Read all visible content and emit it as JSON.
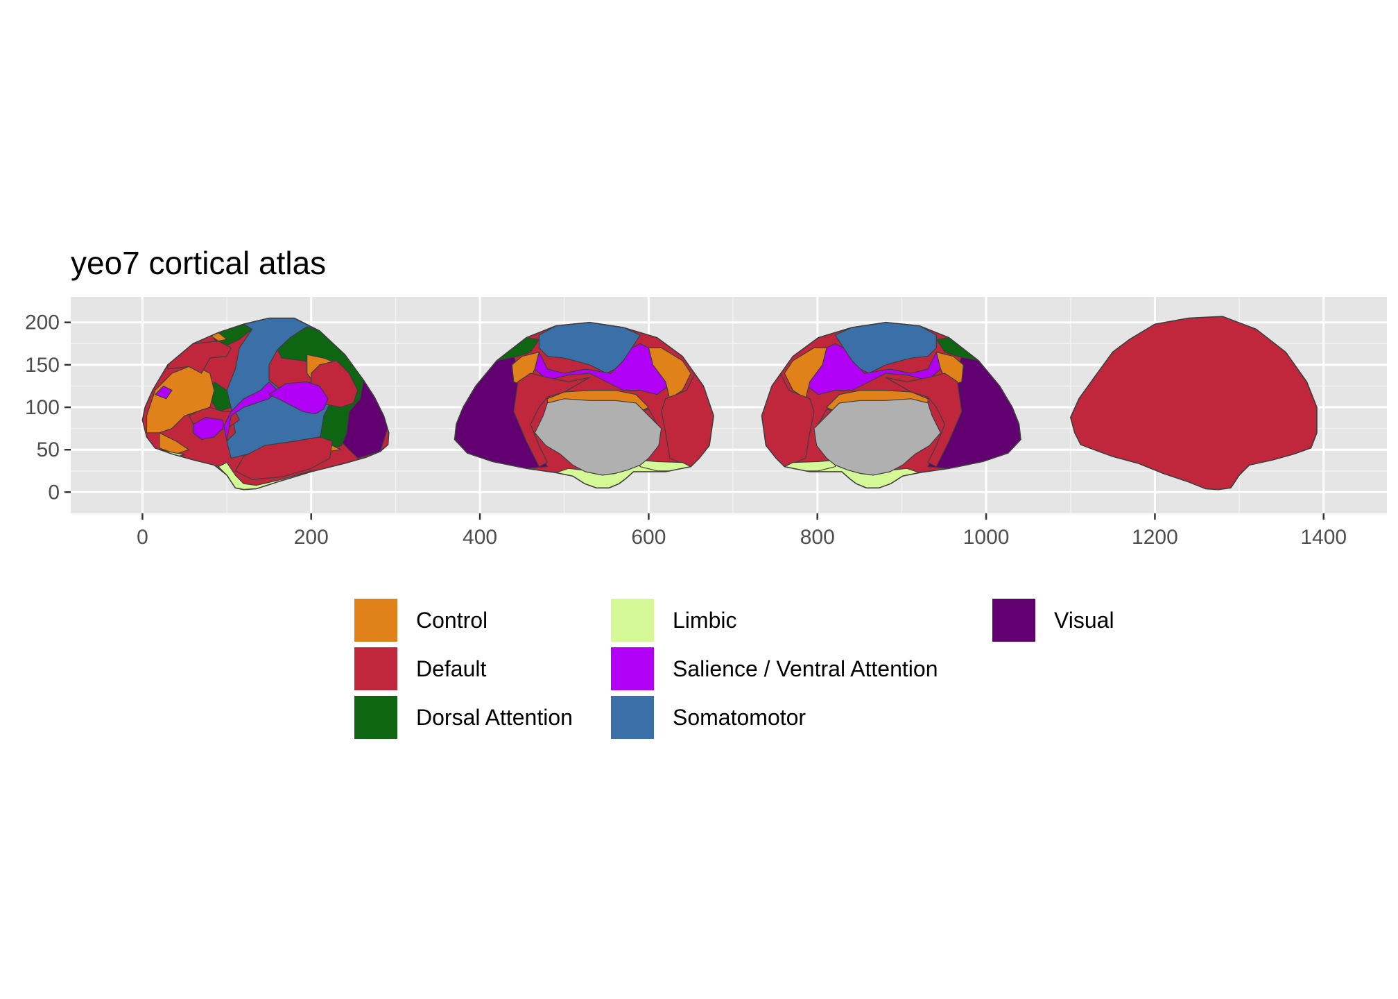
{
  "chart_data": {
    "type": "other",
    "title": "yeo7 cortical atlas",
    "xlabel": "",
    "ylabel": "",
    "xlim": [
      -85,
      1475
    ],
    "ylim": [
      -25,
      230
    ],
    "x_ticks": [
      0,
      200,
      400,
      600,
      800,
      1000,
      1200,
      1400
    ],
    "y_ticks": [
      0,
      50,
      100,
      150,
      200
    ],
    "grid": true,
    "panel_background": "#e5e5e5",
    "legend_position": "bottom",
    "legend": [
      {
        "label": "Control",
        "color": "#e08219"
      },
      {
        "label": "Default",
        "color": "#c1273c"
      },
      {
        "label": "Dorsal Attention",
        "color": "#0f6612"
      },
      {
        "label": "Limbic",
        "color": "#d6f997"
      },
      {
        "label": "Salience / Ventral Attention",
        "color": "#b100f5"
      },
      {
        "label": "Somatomotor",
        "color": "#3a6fa8"
      },
      {
        "label": "Visual",
        "color": "#620071"
      }
    ],
    "views": [
      {
        "name": "left lateral",
        "x_range": [
          0,
          290
        ]
      },
      {
        "name": "left medial",
        "x_range": [
          370,
          675
        ]
      },
      {
        "name": "right medial",
        "x_range": [
          735,
          1040
        ]
      },
      {
        "name": "right lateral",
        "x_range": [
          1100,
          1390
        ]
      }
    ],
    "medial_wall_color": "#b0b0b0"
  }
}
